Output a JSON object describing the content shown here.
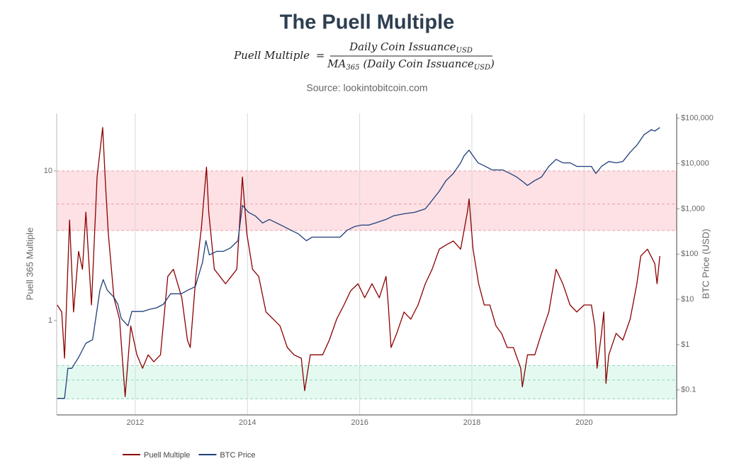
{
  "chart_data": {
    "type": "line",
    "title": "The Puell Multiple",
    "formula": {
      "lhs": "Puell Multiple",
      "equals": "=",
      "numerator": {
        "text": "Daily Coin Issuance",
        "sub": "USD"
      },
      "denominator": {
        "ma": "MA",
        "ma_sub": "365",
        "text": "(Daily Coin Issuance",
        "sub": "USD",
        "close": ")"
      }
    },
    "source": "Source: lookintobitcoin.com",
    "ylabel": "Puell 365 Multiple",
    "y2label": "BTC Price (USD)",
    "log_y": true,
    "log_y2": true,
    "grid": "x",
    "legend": "bottom",
    "xlim": [
      2010.6,
      2021.65
    ],
    "xticks": [
      2012,
      2014,
      2016,
      2018,
      2020
    ],
    "ylim": [
      0.234,
      24.2
    ],
    "yticks": [
      1,
      10
    ],
    "y2lim": [
      0.028,
      128000
    ],
    "y2ticks": [
      {
        "value": 0.1,
        "label": "$0.1"
      },
      {
        "value": 1,
        "label": "$1"
      },
      {
        "value": 10,
        "label": "$10"
      },
      {
        "value": 100,
        "label": "$100"
      },
      {
        "value": 1000,
        "label": "$1,000"
      },
      {
        "value": 10000,
        "label": "$10,000"
      },
      {
        "value": 100000,
        "label": "$100,000"
      }
    ],
    "bands": [
      {
        "from": 4,
        "to": 10,
        "lines": [
          4,
          6,
          10
        ],
        "color": "#fde1e5",
        "line_color": "#e8a0aa"
      },
      {
        "from": 0.3,
        "to": 0.5,
        "lines": [
          0.3,
          0.4,
          0.5
        ],
        "color": "#e4faf1",
        "line_color": "#8fd6b6"
      }
    ],
    "series": [
      {
        "name": "Puell Multiple",
        "color": "#8b0000",
        "axis": "y",
        "x": [
          2010.61,
          2010.69,
          2010.74,
          2010.83,
          2010.9,
          2010.99,
          2011.06,
          2011.12,
          2011.22,
          2011.32,
          2011.42,
          2011.47,
          2011.52,
          2011.62,
          2011.72,
          2011.82,
          2011.92,
          2012.03,
          2012.13,
          2012.23,
          2012.33,
          2012.45,
          2012.58,
          2012.68,
          2012.83,
          2012.93,
          2012.98,
          2013.08,
          2013.18,
          2013.27,
          2013.31,
          2013.41,
          2013.51,
          2013.61,
          2013.71,
          2013.81,
          2013.91,
          2013.99,
          2014.09,
          2014.2,
          2014.33,
          2014.46,
          2014.58,
          2014.71,
          2014.83,
          2014.96,
          2015.02,
          2015.12,
          2015.23,
          2015.34,
          2015.46,
          2015.59,
          2015.72,
          2015.84,
          2015.97,
          2016.09,
          2016.22,
          2016.35,
          2016.47,
          2016.51,
          2016.56,
          2016.66,
          2016.79,
          2016.91,
          2017.04,
          2017.17,
          2017.29,
          2017.42,
          2017.54,
          2017.67,
          2017.8,
          2017.92,
          2017.95,
          2018.02,
          2018.12,
          2018.22,
          2018.32,
          2018.43,
          2018.53,
          2018.63,
          2018.74,
          2018.87,
          2018.9,
          2018.99,
          2019.12,
          2019.24,
          2019.37,
          2019.5,
          2019.62,
          2019.75,
          2019.87,
          2020.0,
          2020.13,
          2020.19,
          2020.23,
          2020.31,
          2020.35,
          2020.39,
          2020.44,
          2020.57,
          2020.69,
          2020.82,
          2020.94,
          2021.01,
          2021.13,
          2021.26,
          2021.3,
          2021.35
        ],
        "values": [
          1.27,
          1.14,
          0.56,
          4.7,
          1.14,
          2.9,
          2.2,
          5.3,
          1.27,
          9.1,
          19.5,
          8.1,
          3.8,
          1.42,
          1.02,
          0.31,
          0.92,
          0.59,
          0.48,
          0.59,
          0.53,
          0.59,
          1.97,
          2.2,
          1.42,
          0.74,
          0.66,
          1.97,
          4.2,
          10.6,
          5.3,
          2.2,
          1.97,
          1.76,
          1.97,
          2.2,
          9.1,
          3.8,
          2.2,
          1.97,
          1.14,
          1.02,
          0.92,
          0.66,
          0.59,
          0.56,
          0.34,
          0.59,
          0.59,
          0.59,
          0.74,
          1.02,
          1.27,
          1.58,
          1.76,
          1.42,
          1.76,
          1.42,
          1.97,
          1.27,
          0.66,
          0.82,
          1.14,
          1.02,
          1.27,
          1.76,
          2.2,
          3.0,
          3.2,
          3.4,
          3.0,
          5.3,
          6.5,
          3.0,
          1.76,
          1.27,
          1.27,
          0.92,
          0.82,
          0.66,
          0.66,
          0.48,
          0.36,
          0.59,
          0.59,
          0.82,
          1.14,
          2.2,
          1.76,
          1.27,
          1.14,
          1.27,
          1.27,
          0.92,
          0.48,
          0.82,
          1.14,
          0.38,
          0.59,
          0.82,
          0.74,
          1.02,
          1.76,
          2.7,
          3.0,
          2.4,
          1.76,
          2.7
        ]
      },
      {
        "name": "BTC Price",
        "color": "#1f3f7a",
        "axis": "y2",
        "x": [
          2010.61,
          2010.74,
          2010.8,
          2010.87,
          2010.99,
          2011.12,
          2011.24,
          2011.37,
          2011.43,
          2011.5,
          2011.62,
          2011.69,
          2011.75,
          2011.87,
          2011.94,
          2012.0,
          2012.13,
          2012.25,
          2012.38,
          2012.5,
          2012.63,
          2012.82,
          2012.94,
          2013.07,
          2013.2,
          2013.26,
          2013.32,
          2013.45,
          2013.57,
          2013.7,
          2013.83,
          2013.91,
          2014.02,
          2014.14,
          2014.27,
          2014.39,
          2014.52,
          2014.65,
          2014.77,
          2014.9,
          2015.05,
          2015.15,
          2015.28,
          2015.46,
          2015.65,
          2015.78,
          2015.91,
          2016.03,
          2016.16,
          2016.28,
          2016.47,
          2016.6,
          2016.79,
          2016.98,
          2017.17,
          2017.29,
          2017.42,
          2017.54,
          2017.67,
          2017.8,
          2017.86,
          2017.95,
          2018.02,
          2018.11,
          2018.24,
          2018.36,
          2018.55,
          2018.68,
          2018.8,
          2018.93,
          2018.99,
          2019.12,
          2019.24,
          2019.37,
          2019.5,
          2019.62,
          2019.75,
          2019.87,
          2020.0,
          2020.13,
          2020.21,
          2020.31,
          2020.44,
          2020.57,
          2020.69,
          2020.82,
          2020.94,
          2021.07,
          2021.2,
          2021.26,
          2021.35
        ],
        "values": [
          0.065,
          0.065,
          0.3,
          0.3,
          0.52,
          1.07,
          1.29,
          16,
          27.4,
          16,
          11.1,
          7.8,
          3.8,
          2.6,
          5.4,
          5.4,
          5.4,
          6.0,
          6.5,
          7.8,
          13.3,
          13.3,
          16,
          19.1,
          67,
          198,
          96,
          115,
          115,
          138,
          198,
          1197,
          836,
          698,
          487,
          583,
          487,
          406,
          340,
          284,
          198,
          237,
          237,
          237,
          237,
          340,
          406,
          437,
          437,
          487,
          583,
          698,
          778,
          836,
          1000,
          1540,
          2460,
          4220,
          6040,
          10370,
          14860,
          19820,
          14860,
          10370,
          8660,
          7230,
          7230,
          6040,
          5050,
          3790,
          3280,
          4220,
          5050,
          8660,
          12410,
          10370,
          10370,
          8660,
          8660,
          8660,
          6040,
          8660,
          11140,
          10370,
          11140,
          17780,
          25470,
          43710,
          56230,
          52330,
          62630
        ]
      }
    ]
  }
}
